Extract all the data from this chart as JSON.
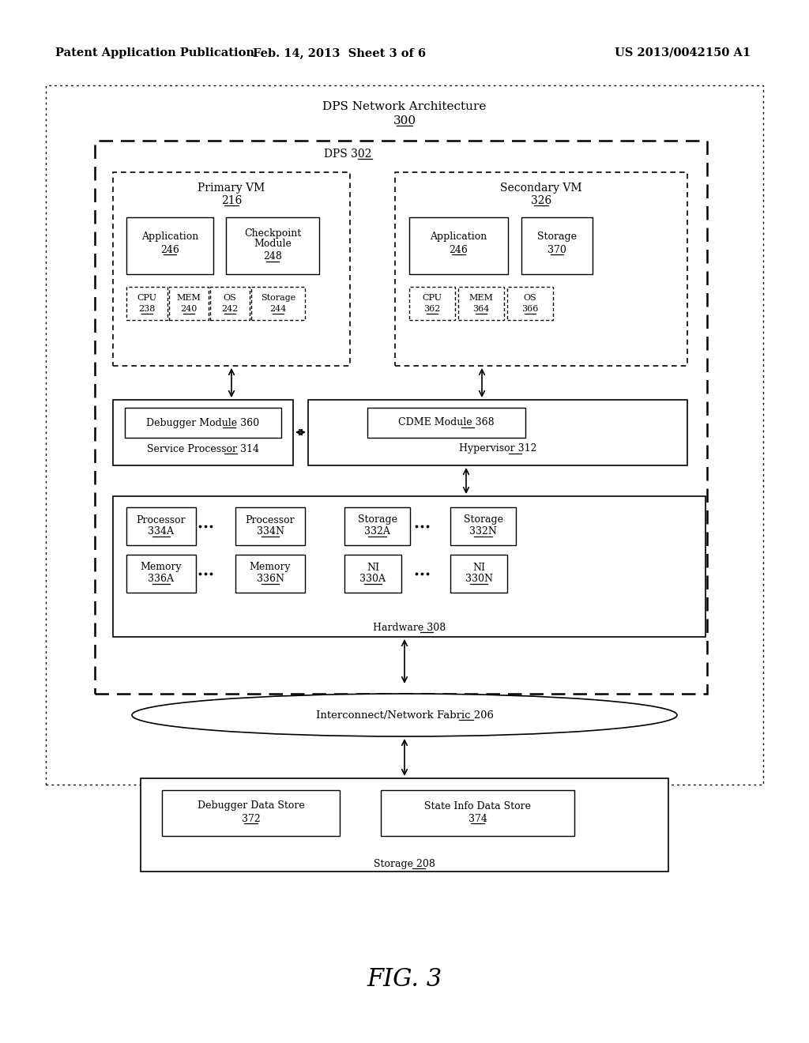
{
  "header_left": "Patent Application Publication",
  "header_mid": "Feb. 14, 2013  Sheet 3 of 6",
  "header_right": "US 2013/0042150 A1",
  "footer_label": "FIG. 3",
  "bg_color": "#ffffff"
}
